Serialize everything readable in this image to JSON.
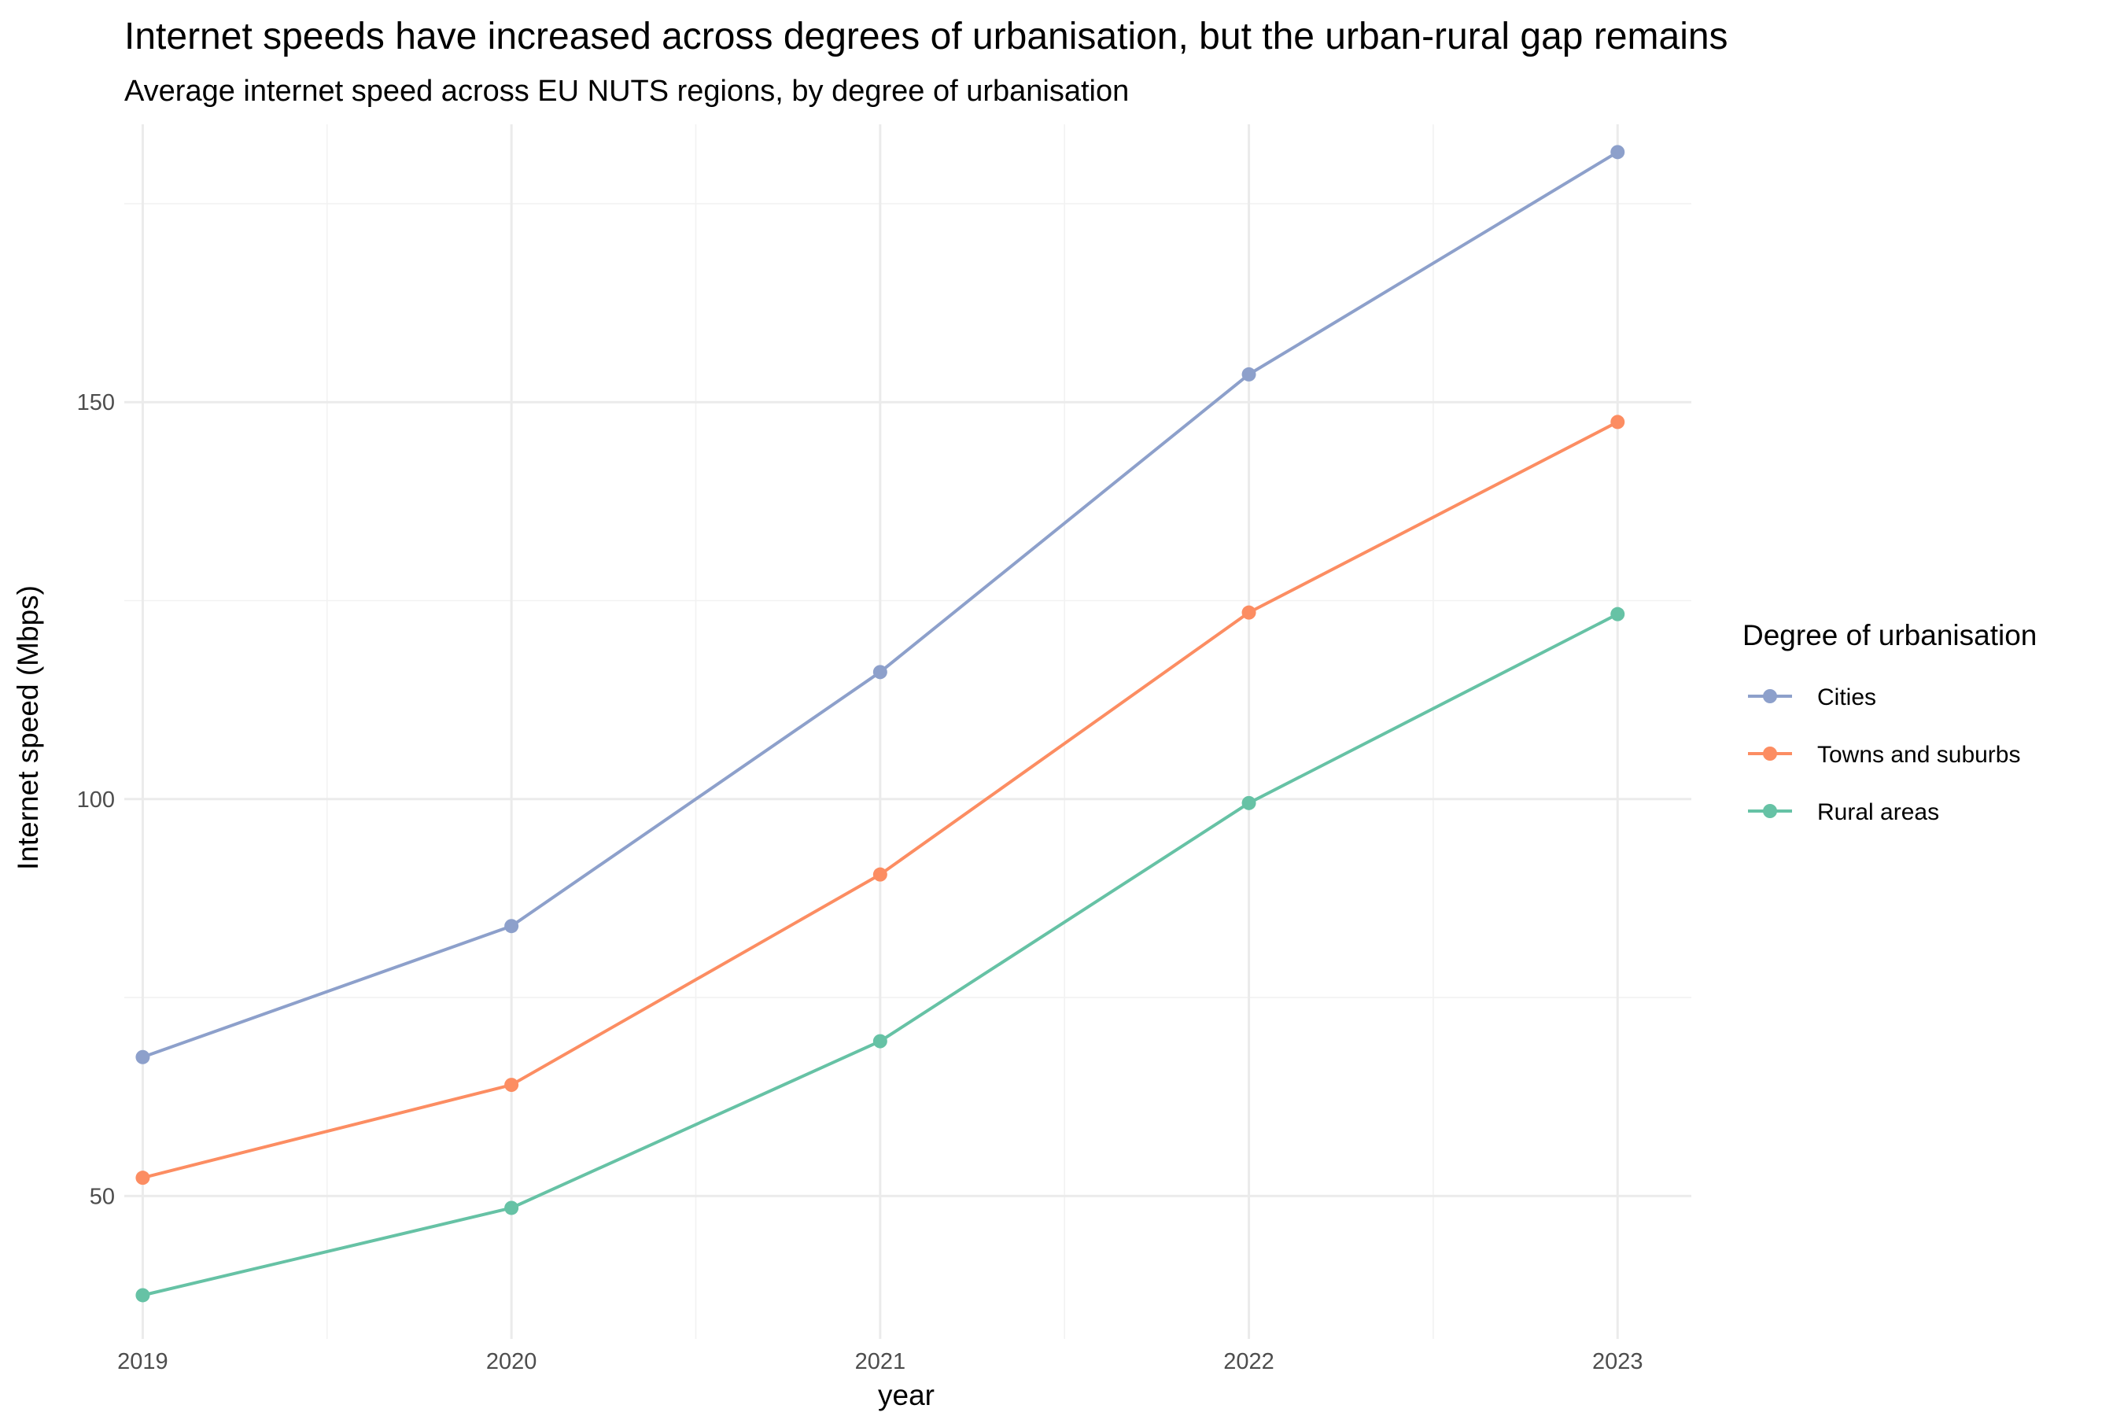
{
  "title": "Internet speeds have increased across degrees of urbanisation, but the urban-rural gap remains",
  "subtitle": "Average internet speed across EU NUTS regions, by degree of urbanisation",
  "chart_data": {
    "type": "line",
    "x": [
      2019,
      2020,
      2021,
      2022,
      2023
    ],
    "x_tick_labels": [
      "2019",
      "2020",
      "2021",
      "2022",
      "2023"
    ],
    "xlabel": "year",
    "ylabel": "Internet speed (Mbps)",
    "xlim": [
      2018.95,
      2023.2
    ],
    "ylim": [
      32,
      185
    ],
    "y_ticks": [
      50,
      100,
      150
    ],
    "y_tick_labels": [
      "50",
      "100",
      "150"
    ],
    "y_minor_ticks": [
      75,
      125,
      175
    ],
    "grid": true,
    "legend": {
      "title": "Degree of urbanisation",
      "position": "right"
    },
    "series": [
      {
        "name": "Cities",
        "color": "#8da0cb",
        "values": [
          67.5,
          84,
          116,
          153.5,
          181.5
        ]
      },
      {
        "name": "Towns and suburbs",
        "color": "#fc8d62",
        "values": [
          52.3,
          64,
          90.5,
          123.5,
          147.5
        ]
      },
      {
        "name": "Rural areas",
        "color": "#66c2a5",
        "values": [
          37.5,
          48.5,
          69.5,
          99.5,
          123.3
        ]
      }
    ]
  }
}
